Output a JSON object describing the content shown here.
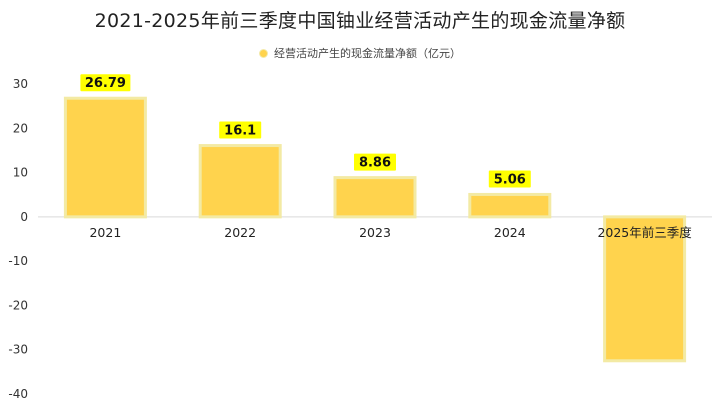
{
  "chart_data": {
    "type": "bar",
    "title": "2021-2025年前三季度中国铀业经营活动产生的现金流量净额",
    "legend": "经营活动产生的现金流量净额（亿元）",
    "categories": [
      "2021",
      "2022",
      "2023",
      "2024",
      "2025年前三季度"
    ],
    "series": [
      {
        "name": "经营活动产生的现金流量净额（亿元）",
        "values": [
          26.79,
          16.1,
          8.86,
          5.06,
          -32.5
        ],
        "labels": [
          "26.79",
          "16.1",
          "8.86",
          "5.06",
          ""
        ]
      }
    ],
    "yticks": [
      "30",
      "20",
      "10",
      "0",
      "-10",
      "-20",
      "-30",
      "-40"
    ],
    "ylim": [
      -40,
      30
    ],
    "grid": false,
    "legend_position": "top",
    "colors": {
      "bar": "#ffd34d",
      "bar_border": "#f3eaa4",
      "label_bg": "#ffff00"
    }
  }
}
